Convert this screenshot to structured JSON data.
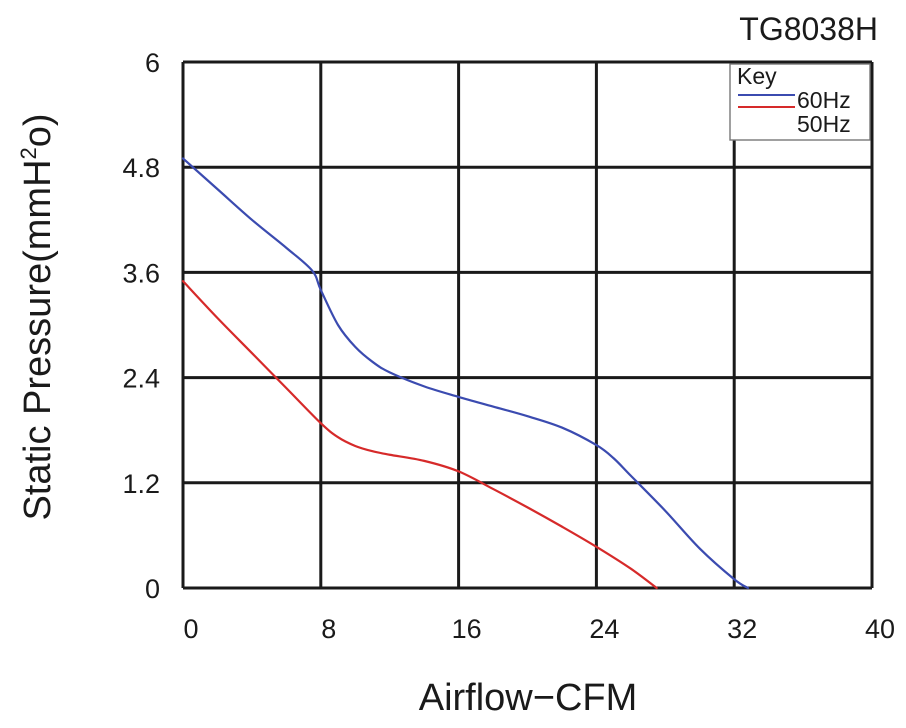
{
  "chart_data": {
    "type": "line",
    "title": "TG8038H",
    "xlabel": "Airflow−CFM",
    "ylabel_main": "Static Pressure(mmH",
    "ylabel_sup": "2",
    "ylabel_end": "o)",
    "xlim": [
      0,
      40
    ],
    "ylim": [
      0,
      6
    ],
    "x_ticks": [
      0,
      8,
      16,
      24,
      32,
      40
    ],
    "y_ticks": [
      0,
      1.2,
      2.4,
      3.6,
      4.8,
      6
    ],
    "x_tick_labels": [
      "0",
      "8",
      "16",
      "24",
      "32",
      "40"
    ],
    "y_tick_labels": [
      "0",
      "1.2",
      "2.4",
      "3.6",
      "4.8",
      "6"
    ],
    "grid": true,
    "legend": {
      "title": "Key",
      "placement": "top-right"
    },
    "series": [
      {
        "name": "60Hz",
        "color": "#3b4bb0",
        "x": [
          0,
          2,
          4,
          6,
          7.5,
          8,
          9,
          10,
          11,
          12,
          14,
          16,
          18,
          20,
          22,
          24,
          25,
          26,
          28,
          30,
          32,
          32.8
        ],
        "y": [
          4.9,
          4.55,
          4.2,
          3.88,
          3.62,
          3.4,
          3.0,
          2.75,
          2.58,
          2.46,
          2.3,
          2.18,
          2.07,
          1.96,
          1.83,
          1.63,
          1.48,
          1.28,
          0.88,
          0.45,
          0.1,
          0.0
        ]
      },
      {
        "name": "50Hz",
        "color": "#d62a2a",
        "x": [
          0,
          2,
          4,
          6,
          8,
          9,
          10,
          11,
          12,
          14,
          16,
          18,
          20,
          22,
          24,
          26,
          27.5
        ],
        "y": [
          3.5,
          3.08,
          2.68,
          2.28,
          1.88,
          1.72,
          1.62,
          1.56,
          1.52,
          1.45,
          1.33,
          1.13,
          0.92,
          0.7,
          0.47,
          0.22,
          0.0
        ]
      }
    ]
  }
}
